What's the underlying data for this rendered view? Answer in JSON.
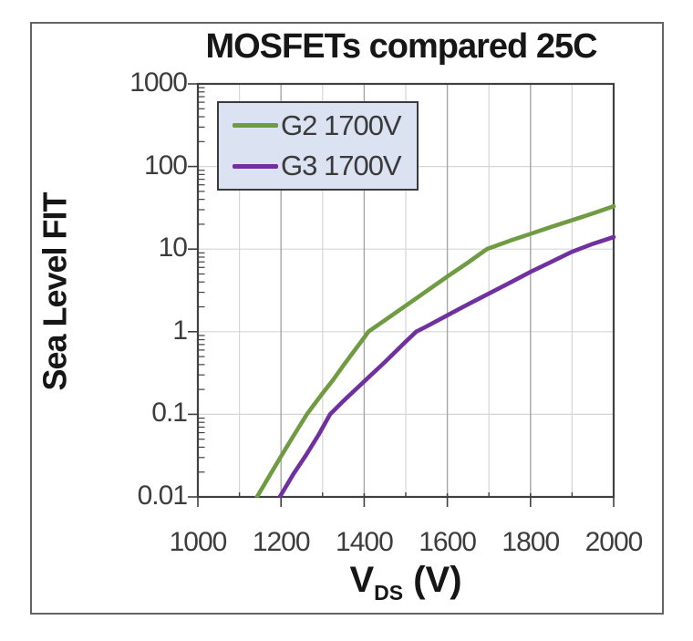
{
  "frame": {
    "title": "MOSFETs compared 25C"
  },
  "axes": {
    "y_title": "Sea Level FIT",
    "x_title_symbol": "V",
    "x_title_subscript": "DS",
    "x_title_unit": "(V)"
  },
  "legend": {
    "entries": [
      {
        "label": "G2 1700V",
        "color": "#6f9b43"
      },
      {
        "label": "G3 1700V",
        "color": "#7030a0"
      }
    ]
  },
  "chart_data": {
    "type": "line",
    "title": "MOSFETs compared 25C",
    "xlabel": "V_DS (V)",
    "ylabel": "Sea Level FIT",
    "grid": true,
    "legend_position": "top-left-inside",
    "x_axis": {
      "min": 1000,
      "max": 2000,
      "ticks": [
        1000,
        1200,
        1400,
        1600,
        1800,
        2000
      ],
      "minor_step": 100
    },
    "y_axis": {
      "scale": "log",
      "min": 0.01,
      "max": 1000,
      "ticks": [
        1000,
        100,
        10,
        1,
        0.1,
        0.01
      ]
    },
    "series": [
      {
        "name": "G2 1700V",
        "color": "#6f9b43",
        "points": [
          [
            1142,
            0.01
          ],
          [
            1175,
            0.019
          ],
          [
            1200,
            0.031
          ],
          [
            1225,
            0.05
          ],
          [
            1262,
            0.1
          ],
          [
            1300,
            0.18
          ],
          [
            1325,
            0.26
          ],
          [
            1350,
            0.39
          ],
          [
            1400,
            0.85
          ],
          [
            1410,
            1.0
          ],
          [
            1450,
            1.38
          ],
          [
            1500,
            2.07
          ],
          [
            1550,
            3.1
          ],
          [
            1600,
            4.65
          ],
          [
            1650,
            6.9
          ],
          [
            1695,
            10.0
          ],
          [
            1750,
            12.6
          ],
          [
            1800,
            15.3
          ],
          [
            1850,
            18.6
          ],
          [
            1900,
            22.4
          ],
          [
            1950,
            27.0
          ],
          [
            2000,
            33.0
          ]
        ]
      },
      {
        "name": "G3 1700V",
        "color": "#7030a0",
        "points": [
          [
            1197,
            0.01
          ],
          [
            1230,
            0.019
          ],
          [
            1260,
            0.032
          ],
          [
            1290,
            0.056
          ],
          [
            1318,
            0.1
          ],
          [
            1350,
            0.145
          ],
          [
            1400,
            0.25
          ],
          [
            1450,
            0.43
          ],
          [
            1500,
            0.76
          ],
          [
            1525,
            1.0
          ],
          [
            1550,
            1.16
          ],
          [
            1600,
            1.58
          ],
          [
            1650,
            2.15
          ],
          [
            1700,
            2.9
          ],
          [
            1750,
            3.9
          ],
          [
            1800,
            5.3
          ],
          [
            1850,
            7.0
          ],
          [
            1900,
            9.3
          ],
          [
            1950,
            11.6
          ],
          [
            2000,
            14.0
          ]
        ]
      }
    ],
    "colors": {
      "plot_border": "#404040",
      "grid_major": "#a6a6a6",
      "grid_minor": "#d6d6d6",
      "tick": "#404040",
      "legend_fill": "#dbe2f2",
      "legend_border": "#3b3b3b",
      "outer_frame": "#646464",
      "text": "#3d3d3d"
    }
  }
}
